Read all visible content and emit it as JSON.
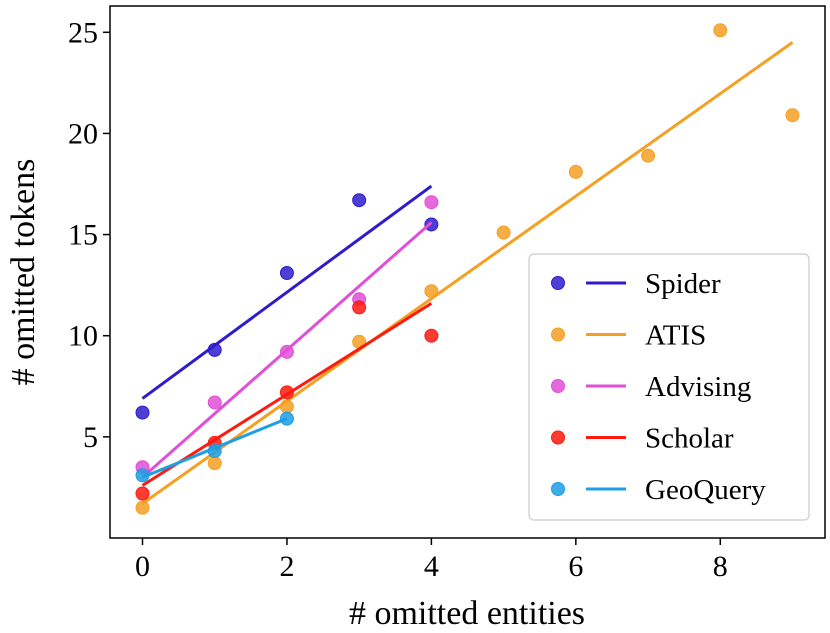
{
  "chart_data": {
    "type": "scatter",
    "title": "",
    "xlabel": "# omitted entities",
    "ylabel": "# omitted tokens",
    "xlim": [
      -0.45,
      9.45
    ],
    "ylim": [
      0.0,
      26.3
    ],
    "xticks": [
      0,
      2,
      4,
      6,
      8
    ],
    "yticks": [
      5,
      10,
      15,
      20,
      25
    ],
    "grid": false,
    "legend_position": "lower-right",
    "series": [
      {
        "name": "Spider",
        "color": "#2e1ccc",
        "points": [
          [
            0,
            6.2
          ],
          [
            1,
            9.3
          ],
          [
            2,
            13.1
          ],
          [
            3,
            16.7
          ],
          [
            4,
            15.5
          ]
        ],
        "fit": [
          [
            0,
            6.9
          ],
          [
            4,
            17.4
          ]
        ]
      },
      {
        "name": "ATIS",
        "color": "#f5a023",
        "points": [
          [
            0,
            1.5
          ],
          [
            1,
            3.7
          ],
          [
            2,
            6.5
          ],
          [
            3,
            9.7
          ],
          [
            4,
            12.2
          ],
          [
            5,
            15.1
          ],
          [
            6,
            18.1
          ],
          [
            7,
            18.9
          ],
          [
            8,
            25.1
          ],
          [
            9,
            20.9
          ]
        ],
        "fit": [
          [
            0,
            1.7
          ],
          [
            9,
            24.5
          ]
        ]
      },
      {
        "name": "Advising",
        "color": "#e04fd6",
        "points": [
          [
            0,
            3.5
          ],
          [
            1,
            6.7
          ],
          [
            2,
            9.2
          ],
          [
            3,
            11.8
          ],
          [
            4,
            16.6
          ]
        ],
        "fit": [
          [
            0,
            3.0
          ],
          [
            4,
            15.6
          ]
        ]
      },
      {
        "name": "Scholar",
        "color": "#ff1a0f",
        "points": [
          [
            0,
            2.2
          ],
          [
            1,
            4.7
          ],
          [
            2,
            7.2
          ],
          [
            3,
            11.4
          ],
          [
            4,
            10.0
          ]
        ],
        "fit": [
          [
            0,
            2.6
          ],
          [
            4,
            11.6
          ]
        ]
      },
      {
        "name": "GeoQuery",
        "color": "#1f9ee3",
        "points": [
          [
            0,
            3.1
          ],
          [
            1,
            4.3
          ],
          [
            2,
            5.9
          ]
        ],
        "fit": [
          [
            0,
            3.0
          ],
          [
            2,
            5.9
          ]
        ]
      }
    ]
  }
}
